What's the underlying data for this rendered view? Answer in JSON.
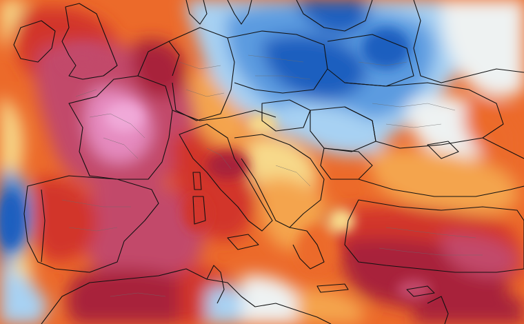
{
  "map": {
    "type": "temperature-anomaly",
    "region": "Europe",
    "palette": {
      "deep_blue": "#1f5fbf",
      "mid_blue": "#5c9be0",
      "light_blue": "#a7d1f3",
      "pale": "#eef2f2",
      "yellow": "#f7d98a",
      "orange": "#f4a44e",
      "orange_red": "#ec6a2a",
      "red": "#d2362b",
      "crimson": "#a8243a",
      "magenta": "#c24a6a",
      "pink": "#e58bbf",
      "light_pink": "#f0a9d8"
    },
    "borders_color": "#111111",
    "subregion_borders_color": "#6b6b6b"
  }
}
